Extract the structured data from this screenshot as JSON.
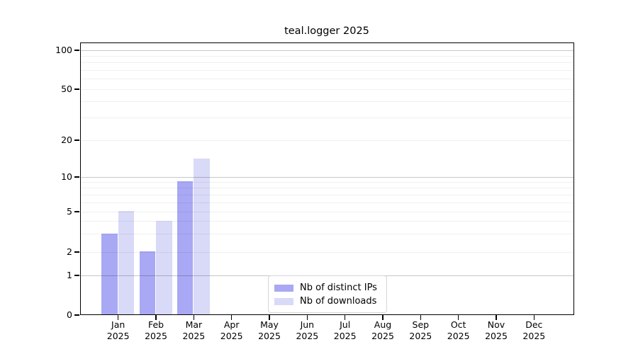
{
  "chart_data": {
    "type": "bar",
    "title": "teal.logger 2025",
    "x_months": [
      "Jan",
      "Feb",
      "Mar",
      "Apr",
      "May",
      "Jun",
      "Jul",
      "Aug",
      "Sep",
      "Oct",
      "Nov",
      "Dec"
    ],
    "x_year": "2025",
    "series": [
      {
        "name": "Nb of distinct IPs",
        "color": "#a8a8f4",
        "values": [
          3,
          2,
          9,
          0,
          0,
          0,
          0,
          0,
          0,
          0,
          0,
          0
        ]
      },
      {
        "name": "Nb of downloads",
        "color": "#d9d9f8",
        "values": [
          5,
          4,
          14,
          0,
          0,
          0,
          0,
          0,
          0,
          0,
          0,
          0
        ]
      }
    ],
    "yticks": [
      0,
      1,
      2,
      5,
      10,
      20,
      50,
      100
    ],
    "ylim": [
      0,
      115
    ],
    "yscale": "log above 1, linear 0-1 (symlog)",
    "grid": true,
    "legend_position": "bottom-center-inside",
    "colors": {
      "grid_major": "rgba(0,0,0,0.22)",
      "grid_minor": "rgba(0,0,0,0.06)",
      "spine": "#000000",
      "background": "#ffffff"
    }
  }
}
